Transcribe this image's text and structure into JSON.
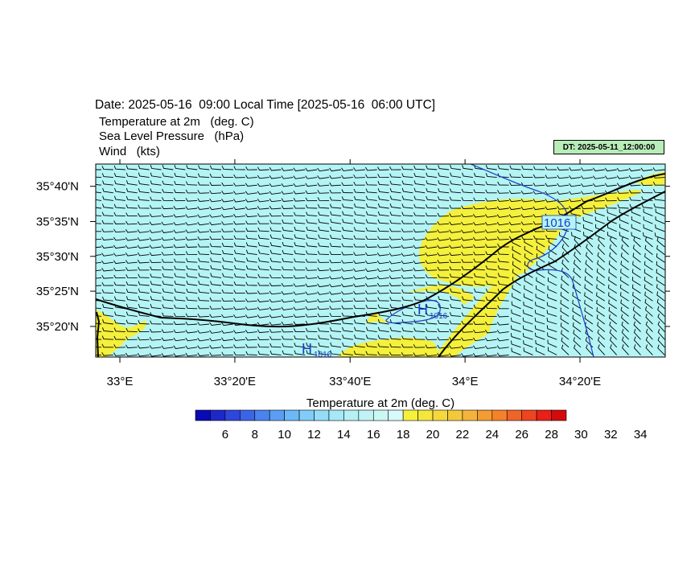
{
  "header": {
    "date_line": "Date: 2025-05-16  09:00 Local Time [2025-05-16  06:00 UTC]",
    "variables": [
      "Temperature at 2m   (deg. C)",
      "Sea Level Pressure   (hPa)",
      "Wind   (kts)"
    ],
    "dt_label": "DT: 2025-05-11_12:00:00"
  },
  "chart_data": {
    "type": "heatmap",
    "title": "Date: 2025-05-16  09:00 Local Time [2025-05-16  06:00 UTC]",
    "xlabel": "",
    "ylabel": "",
    "x_ticks": [
      "33°E",
      "33°20'E",
      "33°40'E",
      "34°E",
      "34°20'E"
    ],
    "x_tick_values": [
      33.0,
      33.333,
      33.667,
      34.0,
      34.333
    ],
    "y_ticks": [
      "35°40'N",
      "35°35'N",
      "35°30'N",
      "35°25'N",
      "35°20'N"
    ],
    "y_tick_values": [
      35.667,
      35.583,
      35.5,
      35.417,
      35.333
    ],
    "xlim": [
      32.93,
      34.58
    ],
    "ylim": [
      35.26,
      35.72
    ],
    "fill_colors": {
      "below_22": "#b4f4f4",
      "22_to_24": "#f4f03c"
    },
    "pressure_contours": [
      {
        "level": 1016,
        "label": "1016",
        "color": "#1a3cc8"
      }
    ],
    "pressure_centers": [
      {
        "type": "H",
        "value": "1016",
        "lon": 33.57,
        "lat": 35.34
      },
      {
        "type": "H",
        "value": "1016",
        "lon": 33.82,
        "lat": 35.37
      }
    ],
    "wind": {
      "units": "kts",
      "prevailing_direction": "W"
    },
    "colorbar": {
      "title": "Temperature at 2m  (deg. C)",
      "labels": [
        "6",
        "8",
        "10",
        "12",
        "14",
        "16",
        "18",
        "20",
        "22",
        "24",
        "26",
        "28",
        "30",
        "32",
        "34"
      ],
      "colors": [
        "#0a0ab4",
        "#1e28c8",
        "#2e46dc",
        "#3c64e6",
        "#4a82ee",
        "#5a9ef4",
        "#6cb8f8",
        "#80cef8",
        "#94dcf8",
        "#a6e8f8",
        "#b4f0f4",
        "#c0f4f4",
        "#ccf8f4",
        "#d8fafa",
        "#f4f03c",
        "#f4e63c",
        "#f4d83c",
        "#f4c83c",
        "#f4b43c",
        "#f49c32",
        "#f4822a",
        "#f06428",
        "#ee4420",
        "#e82018",
        "#d40a0a"
      ]
    }
  }
}
